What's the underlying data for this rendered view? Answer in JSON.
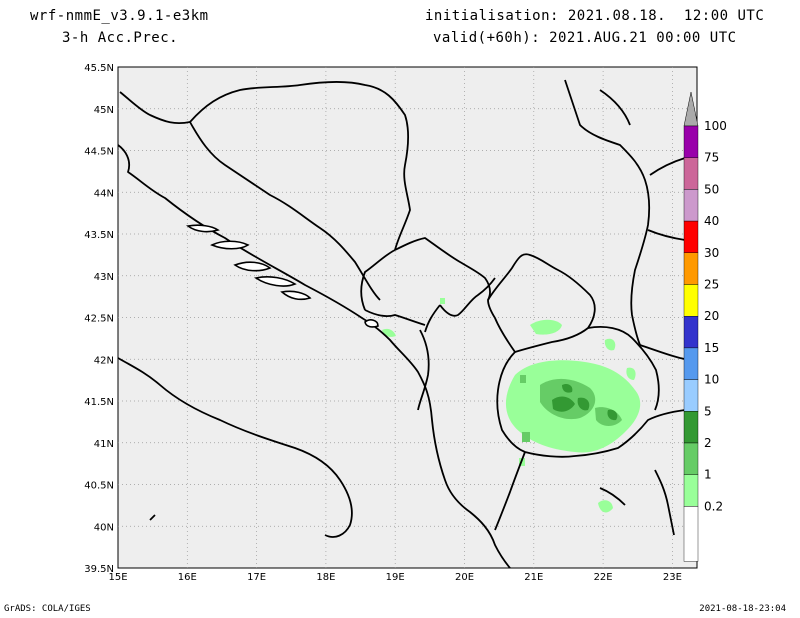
{
  "header": {
    "model_title": "wrf-nmmE_v3.9.1-e3km",
    "field_title": "3-h Acc.Prec.",
    "init_line": "initialisation: 2021.08.18.  12:00 UTC",
    "valid_line": "valid(+60h): 2021.AUG.21 00:00 UTC"
  },
  "footer": {
    "credit": "GrADS: COLA/IGES",
    "timestamp": "2021-08-18-23:04"
  },
  "map": {
    "lat_labels": [
      "45.5N",
      "45N",
      "44.5N",
      "44N",
      "43.5N",
      "43N",
      "42.5N",
      "42N",
      "41.5N",
      "41N",
      "40.5N",
      "40N",
      "39.5N"
    ],
    "lon_labels": [
      "15E",
      "16E",
      "17E",
      "18E",
      "19E",
      "20E",
      "21E",
      "22E",
      "23E"
    ],
    "colors": {
      "land": "#eeeeee",
      "coast": "#000000",
      "grid": "#999999"
    }
  },
  "colorbar": {
    "levels": [
      {
        "label": "100",
        "color": "#9900aa"
      },
      {
        "label": "75",
        "color": "#cc6699"
      },
      {
        "label": "50",
        "color": "#cc99cc"
      },
      {
        "label": "40",
        "color": "#ff0000"
      },
      {
        "label": "30",
        "color": "#ff9900"
      },
      {
        "label": "25",
        "color": "#ffff00"
      },
      {
        "label": "20",
        "color": "#3333cc"
      },
      {
        "label": "15",
        "color": "#5599ee"
      },
      {
        "label": "10",
        "color": "#99ccff"
      },
      {
        "label": "5",
        "color": "#339933"
      },
      {
        "label": "2",
        "color": "#66cc66"
      },
      {
        "label": "1",
        "color": "#99ff99"
      },
      {
        "label": "0.2",
        "color": "#ffffff"
      }
    ],
    "top_color": "#aaaaaa"
  }
}
